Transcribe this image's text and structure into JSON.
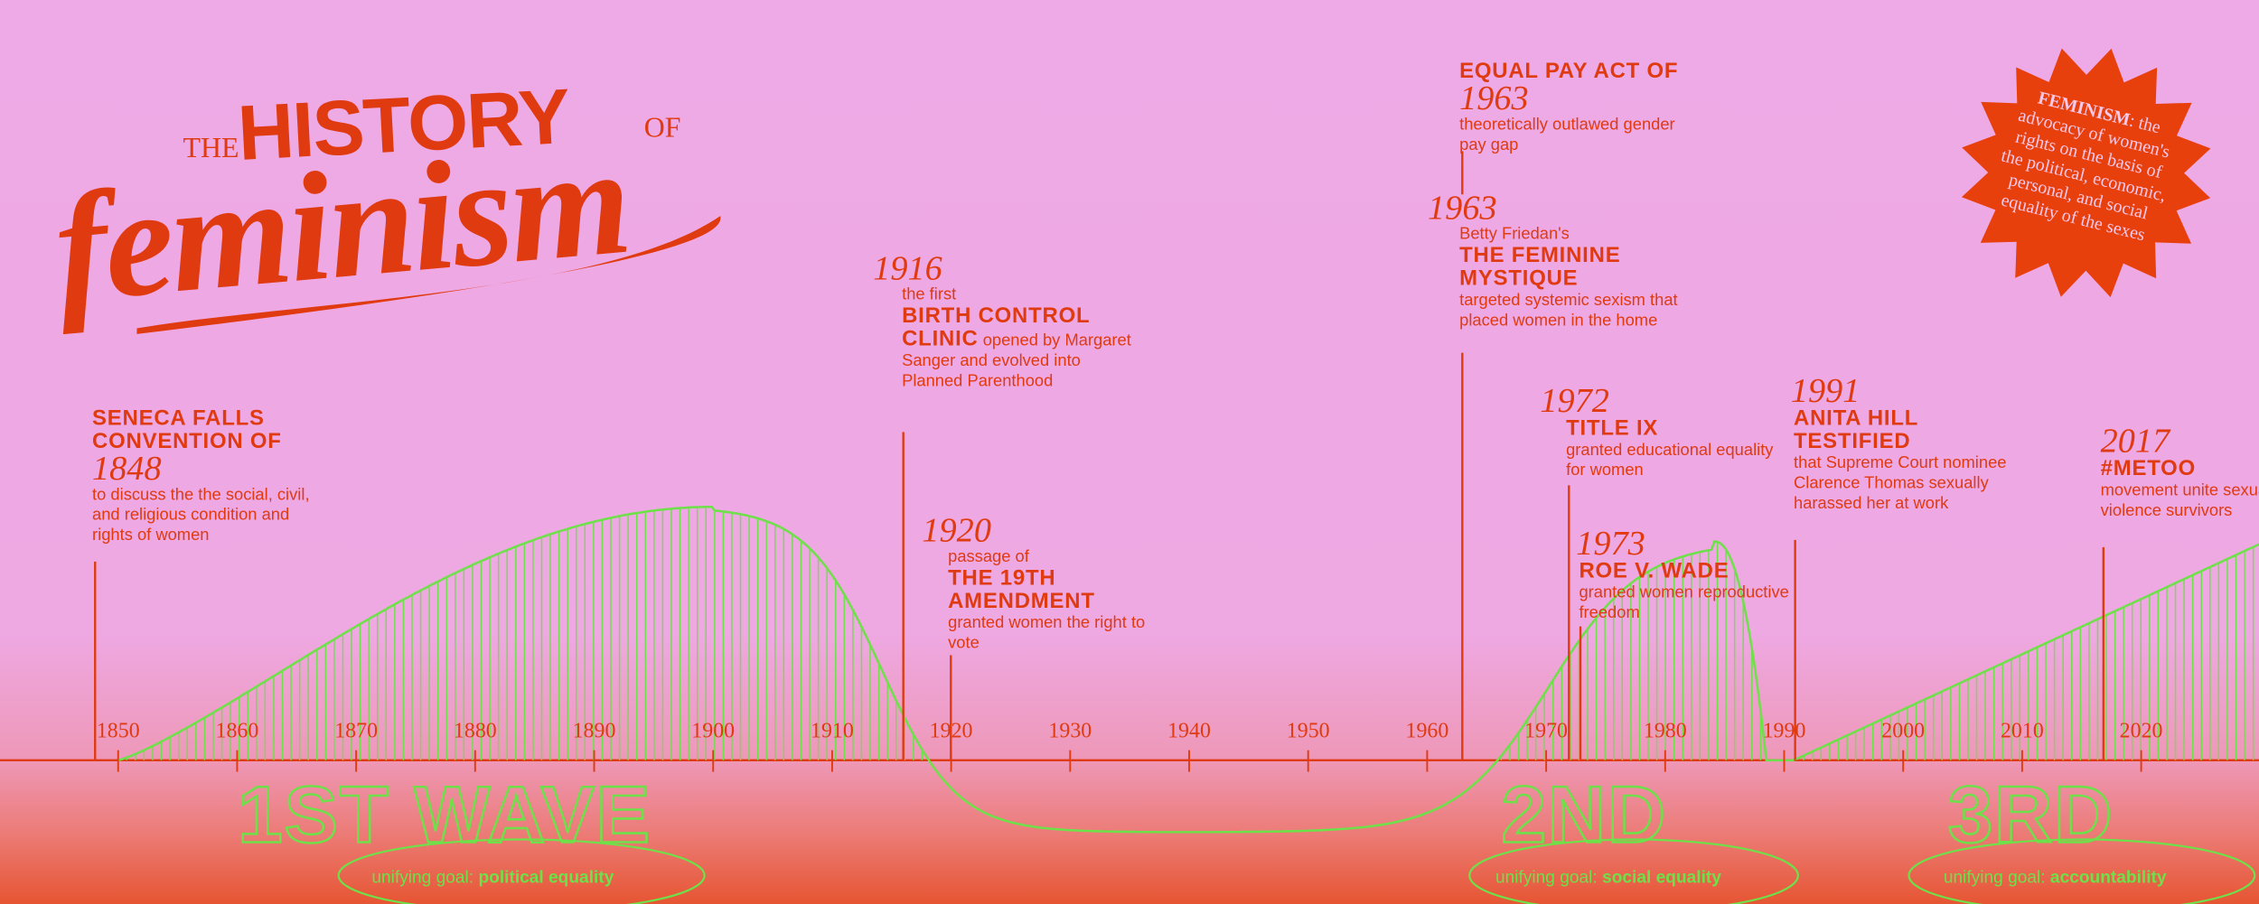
{
  "title": {
    "the": "THE",
    "history": "HISTORY",
    "of": "OF",
    "feminism": "feminism"
  },
  "definition": {
    "term": "FEMINISM",
    "text": ": the advocacy of women's rights on the basis of the political, economic, personal, and social equality of the sexes"
  },
  "events": [
    {
      "heading": "SENECA FALLS CONVENTION OF",
      "year": "1848",
      "text": "to discuss the the social, civil, and religious condition and rights of women"
    },
    {
      "year": "1916",
      "pre": "the first",
      "heading": "BIRTH CONTROL CLINIC",
      "text": "opened by Margaret Sanger and evolved into Planned Parenthood"
    },
    {
      "year": "1920",
      "pre": "passage of",
      "heading": "THE 19TH AMENDMENT",
      "text": "granted women the right to vote"
    },
    {
      "heading": "EQUAL PAY ACT OF",
      "year": "1963",
      "text": "theoretically outlawed gender pay gap"
    },
    {
      "year": "1963",
      "pre": "Betty Friedan's",
      "heading": "THE FEMININE MYSTIQUE",
      "text": "targeted systemic sexism that placed women in the home"
    },
    {
      "year": "1972",
      "heading": "TITLE IX",
      "text": "granted educational equality for women"
    },
    {
      "year": "1973",
      "heading": "ROE V. WADE",
      "text": "granted women reproductive freedom"
    },
    {
      "year": "1991",
      "heading": "ANITA HILL TESTIFIED",
      "text": "that Supreme Court nominee Clarence Thomas sexually harassed her at work"
    },
    {
      "year": "2017",
      "heading": "#METOO",
      "text": "movement unite sexual violence survivors"
    }
  ],
  "axis_years": [
    "1850",
    "1860",
    "1870",
    "1880",
    "1890",
    "1900",
    "1910",
    "1920",
    "1930",
    "1940",
    "1950",
    "1960",
    "1970",
    "1980",
    "1990",
    "2000",
    "2010",
    "2020"
  ],
  "waves": [
    {
      "name": "1ST WAVE",
      "goal_label": "unifying goal:",
      "goal": "political equality"
    },
    {
      "name": "2ND",
      "goal_label": "unifying goal:",
      "goal": "social equality"
    },
    {
      "name": "3RD",
      "goal_label": "unifying goal:",
      "goal": "accountability"
    }
  ]
}
